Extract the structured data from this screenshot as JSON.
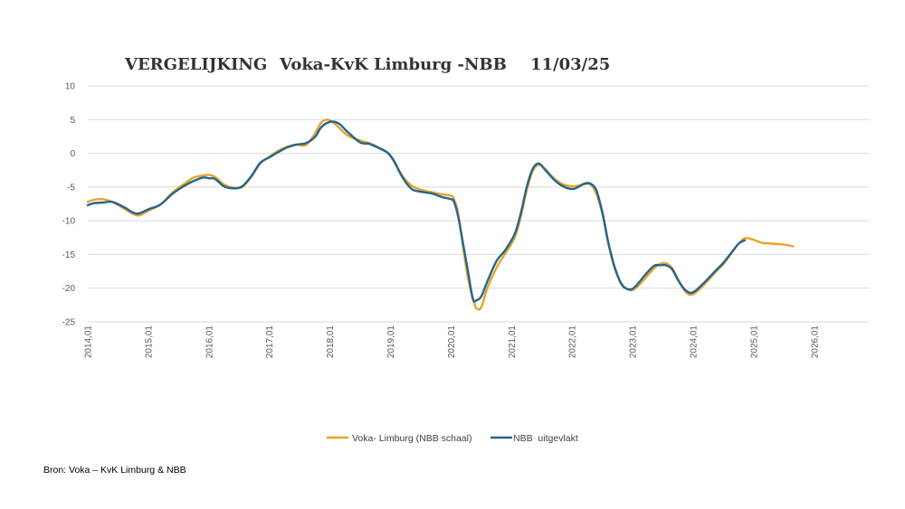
{
  "source": "Bron: Voka – KvK Limburg & NBB",
  "colors": {
    "voka": "#E8A427",
    "nbb": "#23668E",
    "grid": "#D9D9D9",
    "text": "#595959"
  },
  "chart_data": {
    "type": "line",
    "title_parts": [
      "VERGELIJKING",
      "Voka-KvK Limburg -NBB",
      "11/03/25"
    ],
    "xlabel": "",
    "ylabel": "",
    "ylim": [
      -25,
      10
    ],
    "yticks": [
      10,
      5,
      0,
      -5,
      -10,
      -15,
      -20,
      -25
    ],
    "xlim": [
      2014,
      2026.9
    ],
    "xticks": [
      "2014,01",
      "2015,01",
      "2016,01",
      "2017,01",
      "2018,01",
      "2019,01",
      "2020,01",
      "2021,01",
      "2022,01",
      "2023,01",
      "2024,01",
      "2025,01",
      "2026,01"
    ],
    "grid": true,
    "legend_position": "bottom",
    "series": [
      {
        "name": "Voka- Limburg (NBB schaal)",
        "color": "#E8A427",
        "points": [
          [
            2014.0,
            -7.2
          ],
          [
            2014.1,
            -6.9
          ],
          [
            2014.25,
            -6.8
          ],
          [
            2014.4,
            -7.2
          ],
          [
            2014.6,
            -8.2
          ],
          [
            2014.75,
            -9.0
          ],
          [
            2014.85,
            -9.2
          ],
          [
            2015.0,
            -8.5
          ],
          [
            2015.2,
            -7.6
          ],
          [
            2015.4,
            -5.8
          ],
          [
            2015.6,
            -4.5
          ],
          [
            2015.75,
            -3.6
          ],
          [
            2015.9,
            -3.3
          ],
          [
            2016.0,
            -3.2
          ],
          [
            2016.1,
            -3.5
          ],
          [
            2016.25,
            -4.6
          ],
          [
            2016.4,
            -5.1
          ],
          [
            2016.55,
            -5.0
          ],
          [
            2016.7,
            -3.5
          ],
          [
            2016.85,
            -1.5
          ],
          [
            2017.0,
            -0.5
          ],
          [
            2017.15,
            0.4
          ],
          [
            2017.3,
            1.0
          ],
          [
            2017.45,
            1.3
          ],
          [
            2017.6,
            1.2
          ],
          [
            2017.75,
            2.9
          ],
          [
            2017.85,
            4.5
          ],
          [
            2017.95,
            5.0
          ],
          [
            2018.05,
            4.6
          ],
          [
            2018.15,
            3.8
          ],
          [
            2018.3,
            2.6
          ],
          [
            2018.5,
            1.9
          ],
          [
            2018.65,
            1.5
          ],
          [
            2018.8,
            0.9
          ],
          [
            2018.95,
            0.1
          ],
          [
            2019.05,
            -1.1
          ],
          [
            2019.2,
            -3.4
          ],
          [
            2019.35,
            -4.8
          ],
          [
            2019.5,
            -5.4
          ],
          [
            2019.7,
            -5.8
          ],
          [
            2019.85,
            -6.1
          ],
          [
            2020.0,
            -6.3
          ],
          [
            2020.05,
            -6.8
          ],
          [
            2020.12,
            -9.0
          ],
          [
            2020.2,
            -14.0
          ],
          [
            2020.28,
            -18.5
          ],
          [
            2020.36,
            -21.5
          ],
          [
            2020.42,
            -23.0
          ],
          [
            2020.5,
            -22.8
          ],
          [
            2020.6,
            -20.0
          ],
          [
            2020.75,
            -17.0
          ],
          [
            2020.9,
            -14.8
          ],
          [
            2021.05,
            -12.5
          ],
          [
            2021.15,
            -9.5
          ],
          [
            2021.25,
            -5.5
          ],
          [
            2021.35,
            -2.6
          ],
          [
            2021.45,
            -1.7
          ],
          [
            2021.55,
            -2.3
          ],
          [
            2021.7,
            -3.7
          ],
          [
            2021.85,
            -4.6
          ],
          [
            2022.0,
            -4.9
          ],
          [
            2022.1,
            -4.8
          ],
          [
            2022.2,
            -4.6
          ],
          [
            2022.3,
            -4.6
          ],
          [
            2022.4,
            -6.0
          ],
          [
            2022.5,
            -9.0
          ],
          [
            2022.6,
            -13.5
          ],
          [
            2022.7,
            -17.0
          ],
          [
            2022.82,
            -19.4
          ],
          [
            2022.95,
            -20.3
          ],
          [
            2023.05,
            -20.0
          ],
          [
            2023.2,
            -18.6
          ],
          [
            2023.35,
            -17.1
          ],
          [
            2023.45,
            -16.4
          ],
          [
            2023.55,
            -16.3
          ],
          [
            2023.65,
            -17.0
          ],
          [
            2023.75,
            -18.7
          ],
          [
            2023.85,
            -20.3
          ],
          [
            2023.95,
            -21.0
          ],
          [
            2024.05,
            -20.6
          ],
          [
            2024.2,
            -19.3
          ],
          [
            2024.35,
            -17.8
          ],
          [
            2024.5,
            -16.4
          ],
          [
            2024.65,
            -14.6
          ],
          [
            2024.75,
            -13.4
          ],
          [
            2024.85,
            -12.6
          ],
          [
            2024.95,
            -12.7
          ],
          [
            2025.05,
            -13.0
          ],
          [
            2025.15,
            -13.3
          ],
          [
            2025.3,
            -13.4
          ],
          [
            2025.45,
            -13.5
          ],
          [
            2025.55,
            -13.6
          ],
          [
            2025.65,
            -13.8
          ]
        ]
      },
      {
        "name": "NBB  uitgevlakt",
        "color": "#23668E",
        "points": [
          [
            2014.0,
            -7.7
          ],
          [
            2014.1,
            -7.4
          ],
          [
            2014.25,
            -7.3
          ],
          [
            2014.4,
            -7.2
          ],
          [
            2014.6,
            -8.0
          ],
          [
            2014.75,
            -8.8
          ],
          [
            2014.85,
            -8.9
          ],
          [
            2015.0,
            -8.3
          ],
          [
            2015.2,
            -7.6
          ],
          [
            2015.4,
            -6.0
          ],
          [
            2015.6,
            -4.8
          ],
          [
            2015.75,
            -4.1
          ],
          [
            2015.9,
            -3.6
          ],
          [
            2016.0,
            -3.7
          ],
          [
            2016.1,
            -3.8
          ],
          [
            2016.25,
            -4.9
          ],
          [
            2016.4,
            -5.2
          ],
          [
            2016.55,
            -4.9
          ],
          [
            2016.7,
            -3.4
          ],
          [
            2016.85,
            -1.4
          ],
          [
            2017.0,
            -0.6
          ],
          [
            2017.15,
            0.2
          ],
          [
            2017.3,
            0.9
          ],
          [
            2017.45,
            1.3
          ],
          [
            2017.6,
            1.5
          ],
          [
            2017.75,
            2.4
          ],
          [
            2017.85,
            3.8
          ],
          [
            2017.95,
            4.5
          ],
          [
            2018.05,
            4.7
          ],
          [
            2018.15,
            4.4
          ],
          [
            2018.3,
            3.1
          ],
          [
            2018.5,
            1.6
          ],
          [
            2018.65,
            1.4
          ],
          [
            2018.8,
            0.8
          ],
          [
            2018.95,
            0.1
          ],
          [
            2019.05,
            -1.0
          ],
          [
            2019.2,
            -3.6
          ],
          [
            2019.35,
            -5.3
          ],
          [
            2019.5,
            -5.7
          ],
          [
            2019.7,
            -6.0
          ],
          [
            2019.85,
            -6.5
          ],
          [
            2020.0,
            -6.8
          ],
          [
            2020.05,
            -7.2
          ],
          [
            2020.12,
            -9.5
          ],
          [
            2020.2,
            -13.5
          ],
          [
            2020.28,
            -17.5
          ],
          [
            2020.36,
            -21.6
          ],
          [
            2020.42,
            -21.8
          ],
          [
            2020.5,
            -21.2
          ],
          [
            2020.6,
            -19.0
          ],
          [
            2020.75,
            -16.0
          ],
          [
            2020.9,
            -14.3
          ],
          [
            2021.05,
            -12.0
          ],
          [
            2021.15,
            -9.0
          ],
          [
            2021.25,
            -5.0
          ],
          [
            2021.35,
            -2.3
          ],
          [
            2021.45,
            -1.5
          ],
          [
            2021.55,
            -2.4
          ],
          [
            2021.7,
            -3.9
          ],
          [
            2021.85,
            -4.9
          ],
          [
            2022.0,
            -5.3
          ],
          [
            2022.1,
            -5.0
          ],
          [
            2022.2,
            -4.5
          ],
          [
            2022.3,
            -4.5
          ],
          [
            2022.4,
            -5.5
          ],
          [
            2022.5,
            -8.8
          ],
          [
            2022.6,
            -13.3
          ],
          [
            2022.7,
            -16.8
          ],
          [
            2022.82,
            -19.5
          ],
          [
            2022.95,
            -20.2
          ],
          [
            2023.05,
            -19.7
          ],
          [
            2023.2,
            -18.1
          ],
          [
            2023.35,
            -16.7
          ],
          [
            2023.45,
            -16.6
          ],
          [
            2023.55,
            -16.6
          ],
          [
            2023.65,
            -17.2
          ],
          [
            2023.75,
            -18.8
          ],
          [
            2023.85,
            -20.1
          ],
          [
            2023.95,
            -20.7
          ],
          [
            2024.05,
            -20.3
          ],
          [
            2024.2,
            -19.0
          ],
          [
            2024.35,
            -17.6
          ],
          [
            2024.5,
            -16.2
          ],
          [
            2024.65,
            -14.5
          ],
          [
            2024.75,
            -13.4
          ],
          [
            2024.85,
            -12.9
          ]
        ]
      }
    ]
  }
}
